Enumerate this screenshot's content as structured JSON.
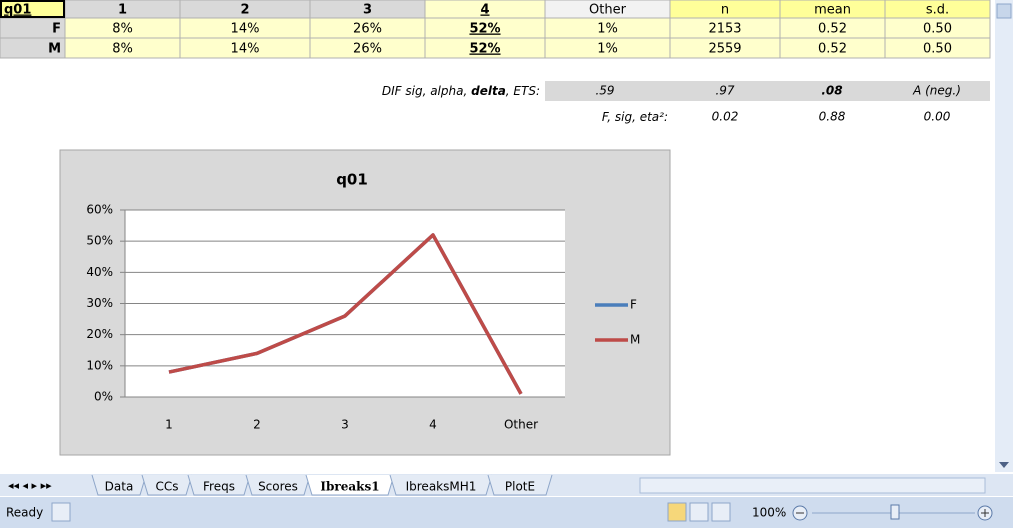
{
  "table": {
    "header": [
      "q01",
      "1",
      "2",
      "3",
      "4",
      "Other",
      "n",
      "mean",
      "s.d."
    ],
    "rows": [
      [
        "F",
        "8%",
        "14%",
        "26%",
        "52%",
        "1%",
        "2153",
        "0.52",
        "0.50"
      ],
      [
        "M",
        "8%",
        "14%",
        "26%",
        "52%",
        "1%",
        "2559",
        "0.52",
        "0.50"
      ]
    ]
  },
  "stats": [
    {
      "label_parts": [
        "DIF sig, alpha, ",
        "delta",
        ", ETS:"
      ],
      "values": [
        ".59",
        ".97",
        ".08",
        "A (neg.)"
      ]
    },
    {
      "label_parts": [
        "F, sig, eta²:"
      ],
      "values": [
        "0.02",
        "0.88",
        "0.00"
      ]
    }
  ],
  "chart_data": {
    "type": "line",
    "title": "q01",
    "categories": [
      "1",
      "2",
      "3",
      "4",
      "Other"
    ],
    "series": [
      {
        "name": "F",
        "color": "#4a7ebb",
        "values": [
          8,
          14,
          26,
          52,
          1
        ]
      },
      {
        "name": "M",
        "color": "#be4b48",
        "values": [
          8,
          14,
          26,
          52,
          1
        ]
      }
    ],
    "ylim": [
      0,
      60
    ],
    "yticks": [
      {
        "value": 0,
        "label": "0%"
      },
      {
        "value": 10,
        "label": "10%"
      },
      {
        "value": 20,
        "label": "20%"
      },
      {
        "value": 30,
        "label": "30%"
      },
      {
        "value": 40,
        "label": "40%"
      },
      {
        "value": 50,
        "label": "50%"
      },
      {
        "value": 60,
        "label": "60%"
      }
    ],
    "grid": true,
    "legend": "right"
  },
  "sheet_tabs": [
    "Data",
    "CCs",
    "Freqs",
    "Scores",
    "Ibreaks1",
    "IbreaksMH1",
    "PlotE"
  ],
  "active_tab": 4,
  "status": {
    "ready": "Ready",
    "zoom": "100%"
  }
}
